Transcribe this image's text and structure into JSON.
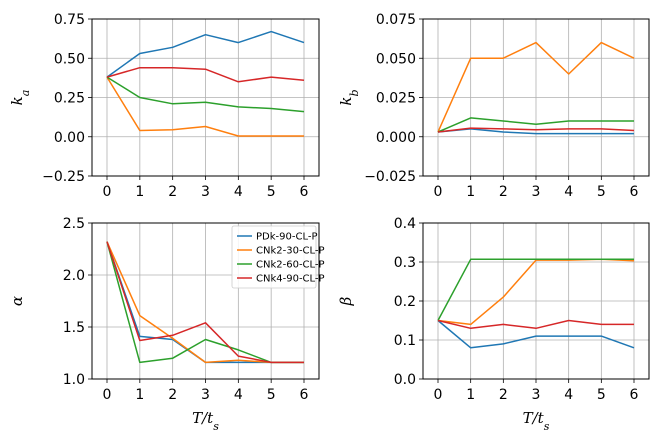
{
  "chart_data": [
    {
      "type": "line",
      "title": "",
      "xlabel": "",
      "ylabel": "k_a",
      "x": [
        0,
        1,
        2,
        3,
        4,
        5,
        6
      ],
      "xticks": [
        "0",
        "1",
        "2",
        "3",
        "4",
        "5",
        "6"
      ],
      "ylim": [
        -0.25,
        0.75
      ],
      "yticks": [
        -0.25,
        0.0,
        0.25,
        0.5,
        0.75
      ],
      "ytick_labels": [
        "−0.25",
        "0.00",
        "0.25",
        "0.50",
        "0.75"
      ],
      "grid": true,
      "series": [
        {
          "name": "PDk-90-CL-P",
          "color": "#1f77b4",
          "values": [
            0.38,
            0.53,
            0.57,
            0.65,
            0.6,
            0.67,
            0.6
          ]
        },
        {
          "name": "CNk2-30-CL-P",
          "color": "#ff7f0e",
          "values": [
            0.38,
            0.04,
            0.045,
            0.065,
            0.005,
            0.005,
            0.005
          ]
        },
        {
          "name": "CNk2-60-CL-P",
          "color": "#2ca02c",
          "values": [
            0.38,
            0.25,
            0.21,
            0.22,
            0.19,
            0.18,
            0.16
          ]
        },
        {
          "name": "CNk4-90-CL-P",
          "color": "#d62728",
          "values": [
            0.38,
            0.44,
            0.44,
            0.43,
            0.35,
            0.38,
            0.36
          ]
        }
      ]
    },
    {
      "type": "line",
      "title": "",
      "xlabel": "",
      "ylabel": "k_b",
      "x": [
        0,
        1,
        2,
        3,
        4,
        5,
        6
      ],
      "xticks": [
        "0",
        "1",
        "2",
        "3",
        "4",
        "5",
        "6"
      ],
      "ylim": [
        -0.025,
        0.075
      ],
      "yticks": [
        -0.025,
        0.0,
        0.025,
        0.05,
        0.075
      ],
      "ytick_labels": [
        "−0.025",
        "0.000",
        "0.025",
        "0.050",
        "0.075"
      ],
      "grid": true,
      "series": [
        {
          "name": "PDk-90-CL-P",
          "color": "#1f77b4",
          "values": [
            0.003,
            0.005,
            0.003,
            0.002,
            0.002,
            0.002,
            0.002
          ]
        },
        {
          "name": "CNk2-30-CL-P",
          "color": "#ff7f0e",
          "values": [
            0.003,
            0.05,
            0.05,
            0.06,
            0.04,
            0.06,
            0.05
          ]
        },
        {
          "name": "CNk2-60-CL-P",
          "color": "#2ca02c",
          "values": [
            0.003,
            0.012,
            0.01,
            0.008,
            0.01,
            0.01,
            0.01
          ]
        },
        {
          "name": "CNk4-90-CL-P",
          "color": "#d62728",
          "values": [
            0.003,
            0.0055,
            0.005,
            0.0045,
            0.005,
            0.005,
            0.004
          ]
        }
      ]
    },
    {
      "type": "line",
      "title": "",
      "xlabel": "T/t_s",
      "ylabel": "α",
      "x": [
        0,
        1,
        2,
        3,
        4,
        5,
        6
      ],
      "xticks": [
        "0",
        "1",
        "2",
        "3",
        "4",
        "5",
        "6"
      ],
      "ylim": [
        1.0,
        2.5
      ],
      "yticks": [
        1.0,
        1.5,
        2.0,
        2.5
      ],
      "ytick_labels": [
        "1.0",
        "1.5",
        "2.0",
        "2.5"
      ],
      "grid": true,
      "legend": "top-right",
      "series": [
        {
          "name": "PDk-90-CL-P",
          "color": "#1f77b4",
          "values": [
            2.32,
            1.41,
            1.38,
            1.16,
            1.16,
            1.16,
            1.16
          ]
        },
        {
          "name": "CNk2-30-CL-P",
          "color": "#ff7f0e",
          "values": [
            2.32,
            1.61,
            1.39,
            1.16,
            1.18,
            1.16,
            1.16
          ]
        },
        {
          "name": "CNk2-60-CL-P",
          "color": "#2ca02c",
          "values": [
            2.32,
            1.16,
            1.2,
            1.38,
            1.28,
            1.16,
            1.16
          ]
        },
        {
          "name": "CNk4-90-CL-P",
          "color": "#d62728",
          "values": [
            2.32,
            1.37,
            1.42,
            1.54,
            1.22,
            1.16,
            1.16
          ]
        }
      ]
    },
    {
      "type": "line",
      "title": "",
      "xlabel": "T/t_s",
      "ylabel": "β",
      "x": [
        0,
        1,
        2,
        3,
        4,
        5,
        6
      ],
      "xticks": [
        "0",
        "1",
        "2",
        "3",
        "4",
        "5",
        "6"
      ],
      "ylim": [
        0.0,
        0.4
      ],
      "yticks": [
        0.0,
        0.1,
        0.2,
        0.3,
        0.4
      ],
      "ytick_labels": [
        "0.0",
        "0.1",
        "0.2",
        "0.3",
        "0.4"
      ],
      "grid": true,
      "series": [
        {
          "name": "PDk-90-CL-P",
          "color": "#1f77b4",
          "values": [
            0.15,
            0.08,
            0.09,
            0.11,
            0.11,
            0.11,
            0.08
          ]
        },
        {
          "name": "CNk2-30-CL-P",
          "color": "#ff7f0e",
          "values": [
            0.15,
            0.14,
            0.21,
            0.305,
            0.305,
            0.307,
            0.303
          ]
        },
        {
          "name": "CNk2-60-CL-P",
          "color": "#2ca02c",
          "values": [
            0.15,
            0.307,
            0.307,
            0.307,
            0.307,
            0.307,
            0.307
          ]
        },
        {
          "name": "CNk4-90-CL-P",
          "color": "#d62728",
          "values": [
            0.15,
            0.13,
            0.14,
            0.13,
            0.15,
            0.14,
            0.14
          ]
        }
      ]
    }
  ]
}
